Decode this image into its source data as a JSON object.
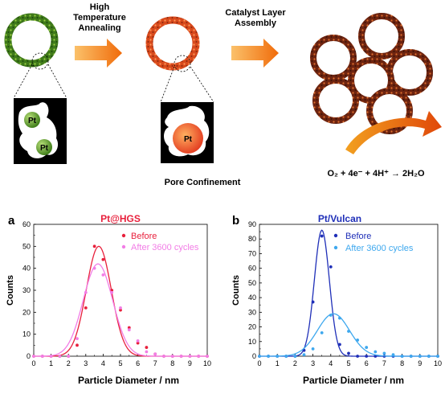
{
  "schematic": {
    "step1_label_line1": "High",
    "step1_label_line2": "Temperature",
    "step1_label_line3": "Annealing",
    "step2_label_line1": "Catalyst Layer",
    "step2_label_line2": "Assembly",
    "pore_caption": "Pore Confinement",
    "particle_label": "Pt",
    "reaction": "O₂ + 4e⁻ + 4H⁺ → 2H₂O",
    "colors": {
      "green_shell": "#4f8f1f",
      "orange_shell": "#e25a20",
      "brown_shell": "#7a2a12",
      "arrow_orange": "#f07d10",
      "pt_green": "#5aa02c",
      "pt_red": "#e8431e"
    }
  },
  "chart_data": [
    {
      "panel_label": "a",
      "type": "line",
      "title": "Pt@HGS",
      "title_color": "#e8203c",
      "xlabel": "Particle Diameter / nm",
      "ylabel": "Counts",
      "xlim": [
        0,
        10
      ],
      "ylim": [
        0,
        60
      ],
      "xticks": [
        "0",
        "1",
        "2",
        "3",
        "4",
        "5",
        "6",
        "7",
        "8",
        "9",
        "10"
      ],
      "yticks": [
        "0",
        "10",
        "20",
        "30",
        "40",
        "50",
        "60"
      ],
      "grid": false,
      "legend_position": "top-right",
      "series": [
        {
          "name": "Before",
          "color": "#e8203c",
          "points": [
            [
              0,
              0
            ],
            [
              0.5,
              0
            ],
            [
              1,
              0
            ],
            [
              1.5,
              0
            ],
            [
              2,
              0
            ],
            [
              2.5,
              5
            ],
            [
              3,
              22
            ],
            [
              3.5,
              50
            ],
            [
              4,
              44
            ],
            [
              4.5,
              30
            ],
            [
              5,
              21
            ],
            [
              5.5,
              13
            ],
            [
              6,
              6
            ],
            [
              6.5,
              4
            ],
            [
              7,
              1
            ],
            [
              7.5,
              0
            ],
            [
              8,
              0
            ],
            [
              8.5,
              0
            ],
            [
              9,
              0
            ],
            [
              9.5,
              0
            ],
            [
              10,
              0
            ]
          ],
          "fit": {
            "center": 3.75,
            "amplitude": 50,
            "sigma": 0.72
          }
        },
        {
          "name": "After 3600 cycles",
          "color": "#f27de6",
          "points": [
            [
              0,
              0
            ],
            [
              0.5,
              0
            ],
            [
              1,
              0
            ],
            [
              1.5,
              0
            ],
            [
              2,
              0
            ],
            [
              2.5,
              8
            ],
            [
              3,
              29
            ],
            [
              3.5,
              40
            ],
            [
              4,
              37
            ],
            [
              4.5,
              29
            ],
            [
              5,
              22
            ],
            [
              5.5,
              12
            ],
            [
              6,
              7
            ],
            [
              6.5,
              2
            ],
            [
              7,
              1
            ],
            [
              7.5,
              0
            ],
            [
              8,
              0
            ],
            [
              8.5,
              0
            ],
            [
              9,
              0
            ],
            [
              9.5,
              0
            ],
            [
              10,
              0
            ]
          ],
          "fit": {
            "center": 3.7,
            "amplitude": 42,
            "sigma": 0.85
          }
        }
      ]
    },
    {
      "panel_label": "b",
      "type": "line",
      "title": "Pt/Vulcan",
      "title_color": "#1f2fb8",
      "xlabel": "Particle Diameter / nm",
      "ylabel": "Counts",
      "xlim": [
        0,
        10
      ],
      "ylim": [
        0,
        90
      ],
      "xticks": [
        "0",
        "1",
        "2",
        "3",
        "4",
        "5",
        "6",
        "7",
        "8",
        "9",
        "10"
      ],
      "yticks": [
        "0",
        "10",
        "20",
        "30",
        "40",
        "50",
        "60",
        "70",
        "80",
        "90"
      ],
      "grid": false,
      "legend_position": "top-right",
      "series": [
        {
          "name": "Before",
          "color": "#1f2fb8",
          "points": [
            [
              0,
              0
            ],
            [
              0.5,
              0
            ],
            [
              1,
              0
            ],
            [
              1.5,
              0
            ],
            [
              2,
              0
            ],
            [
              2.5,
              4
            ],
            [
              3,
              37
            ],
            [
              3.5,
              82
            ],
            [
              4,
              61
            ],
            [
              4.5,
              8
            ],
            [
              5,
              2
            ],
            [
              5.5,
              0
            ],
            [
              6,
              0
            ],
            [
              6.5,
              0
            ],
            [
              7,
              0
            ],
            [
              7.5,
              0
            ],
            [
              8,
              0
            ],
            [
              8.5,
              0
            ],
            [
              9,
              0
            ],
            [
              9.5,
              0
            ],
            [
              10,
              0
            ]
          ],
          "fit": {
            "center": 3.5,
            "amplitude": 86,
            "sigma": 0.42
          }
        },
        {
          "name": "After 3600 cycles",
          "color": "#3ea8ee",
          "points": [
            [
              0,
              0
            ],
            [
              0.5,
              0
            ],
            [
              1,
              0
            ],
            [
              1.5,
              0
            ],
            [
              2,
              0
            ],
            [
              2.5,
              1
            ],
            [
              3,
              5
            ],
            [
              3.5,
              16
            ],
            [
              4,
              28
            ],
            [
              4.5,
              26
            ],
            [
              5,
              17
            ],
            [
              5.5,
              11
            ],
            [
              6,
              6
            ],
            [
              6.5,
              3
            ],
            [
              7,
              2
            ],
            [
              7.5,
              1
            ],
            [
              8,
              0
            ],
            [
              8.5,
              0
            ],
            [
              9,
              0
            ],
            [
              9.5,
              0
            ],
            [
              10,
              0
            ]
          ],
          "fit": {
            "center": 4.15,
            "amplitude": 29,
            "sigma": 0.9
          }
        }
      ]
    }
  ]
}
